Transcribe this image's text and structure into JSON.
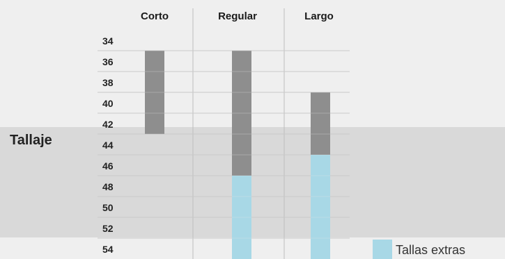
{
  "chart_data": {
    "type": "table",
    "side_label": "Tallaje",
    "columns": [
      "Corto",
      "Regular",
      "Largo"
    ],
    "sizes": [
      "34",
      "36",
      "38",
      "40",
      "42",
      "44",
      "46",
      "48",
      "50",
      "52",
      "54"
    ],
    "availability": {
      "Corto": {
        "standard": [
          "36",
          "38",
          "40",
          "42"
        ],
        "extra": []
      },
      "Regular": {
        "standard": [
          "36",
          "38",
          "40",
          "42",
          "44",
          "46"
        ],
        "extra": [
          "48",
          "50",
          "52",
          "54"
        ]
      },
      "Largo": {
        "standard": [
          "40",
          "42",
          "44"
        ],
        "extra": [
          "46",
          "48",
          "50",
          "52",
          "54"
        ]
      }
    },
    "legend": [
      {
        "label": "Tallas extras",
        "color": "#a8d8e6"
      }
    ],
    "colors": {
      "standard": "#8e8e8e",
      "extra": "#a8d8e6",
      "band": "#d9d9d9",
      "line": "#bdbdbd"
    }
  }
}
